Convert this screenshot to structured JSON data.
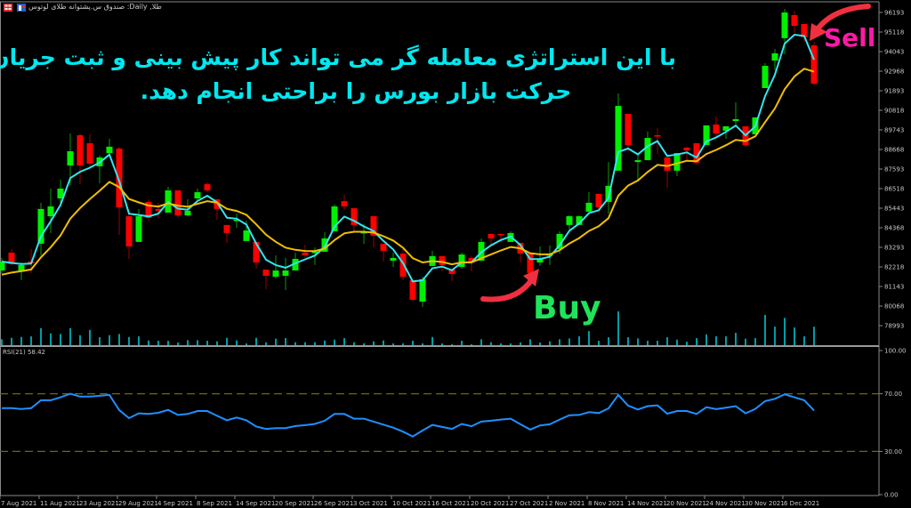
{
  "window": {
    "title": "طلا, Daily: صندوق س.پشتوانه طلای لوتوس",
    "icons": [
      "chart-grid-icon",
      "chart-window-icon"
    ]
  },
  "annotations": {
    "headline_line1": "با این استراتژی معامله گر می تواند کار پیش بینی و ثبت جریان",
    "headline_line2": "حرکت بازار بورس را براحتی انجام دهد.",
    "buy_label": "Buy",
    "sell_label": "Sell",
    "buy_candle_index": 55,
    "sell_candle_index": 82
  },
  "colors": {
    "background": "#000000",
    "bull": "#00f000",
    "bear": "#ff0000",
    "fast_ma": "#33e6f0",
    "slow_ma": "#f0c000",
    "volume": "#00d0e0",
    "rsi": "#1e90ff",
    "rsi_levels": "#7a6400",
    "headline": "#00e8f0",
    "buy": "#1fe35a",
    "sell": "#ff1aa5",
    "arrow": "#f03040"
  },
  "chart_data": [
    {
      "type": "candlestick",
      "symbol": "طلا",
      "timeframe": "Daily",
      "ylim": [
        78993,
        96193
      ],
      "y_ticks": [
        "96193",
        "95118",
        "94043",
        "92968",
        "91893",
        "90818",
        "89743",
        "88668",
        "87593",
        "86518",
        "85443",
        "84368",
        "83293",
        "82218",
        "81143",
        "80068",
        "78993"
      ],
      "x_tick_labels": [
        "7 Aug 2021",
        "11 Aug 2021",
        "23 Aug 2021",
        "29 Aug 2021",
        "4 Sep 2021",
        "8 Sep 2021",
        "14 Sep 2021",
        "20 Sep 2021",
        "26 Sep 2021",
        "3 Oct 2021",
        "10 Oct 2021",
        "16 Oct 2021",
        "20 Oct 2021",
        "27 Oct 2021",
        "2 Nov 2021",
        "8 Nov 2021",
        "14 Nov 2021",
        "20 Nov 2021",
        "24 Nov 2021",
        "30 Nov 2021",
        "6 Dec 2021"
      ],
      "x_tick_every": 4,
      "ohlc": [
        [
          82020,
          82710,
          81830,
          82510
        ],
        [
          83000,
          83200,
          82320,
          82370
        ],
        [
          82020,
          82460,
          81490,
          82320
        ],
        [
          82510,
          83200,
          81880,
          82420
        ],
        [
          83490,
          85740,
          82850,
          85400
        ],
        [
          85000,
          86520,
          84080,
          85540
        ],
        [
          85980,
          87010,
          85540,
          86520
        ],
        [
          87790,
          89550,
          86710,
          88570
        ],
        [
          89450,
          89550,
          86760,
          87790
        ],
        [
          89010,
          89500,
          87740,
          87890
        ],
        [
          87740,
          88330,
          86810,
          88230
        ],
        [
          88470,
          89260,
          88330,
          88820
        ],
        [
          88720,
          88820,
          83980,
          85490
        ],
        [
          85000,
          85100,
          82660,
          83340
        ],
        [
          83590,
          85400,
          83590,
          85000
        ],
        [
          85790,
          85930,
          84760,
          84910
        ],
        [
          85400,
          85740,
          84900,
          85300
        ],
        [
          85200,
          86620,
          85200,
          86420
        ],
        [
          86420,
          86420,
          84910,
          85050
        ],
        [
          85050,
          85930,
          85000,
          85300
        ],
        [
          85980,
          86520,
          85880,
          86320
        ],
        [
          86760,
          86860,
          86320,
          86420
        ],
        [
          85930,
          85930,
          84810,
          85400
        ],
        [
          84520,
          84520,
          83540,
          84080
        ],
        [
          84760,
          85150,
          84370,
          84810
        ],
        [
          83640,
          84760,
          83640,
          84220
        ],
        [
          83590,
          83590,
          82120,
          82460
        ],
        [
          82070,
          82070,
          81000,
          81730
        ],
        [
          81680,
          82850,
          81580,
          82020
        ],
        [
          81730,
          82710,
          80950,
          82020
        ],
        [
          82020,
          83000,
          82020,
          82660
        ],
        [
          83000,
          83440,
          82710,
          82850
        ],
        [
          83000,
          83290,
          82320,
          83050
        ],
        [
          83050,
          84130,
          83050,
          83780
        ],
        [
          84170,
          85640,
          84170,
          85540
        ],
        [
          85830,
          86180,
          85350,
          85540
        ],
        [
          85440,
          85440,
          84170,
          84520
        ],
        [
          84100,
          84570,
          83490,
          84130
        ],
        [
          85000,
          85000,
          83290,
          83930
        ],
        [
          83490,
          83490,
          82510,
          83100
        ],
        [
          82560,
          83000,
          82220,
          82710
        ],
        [
          82950,
          83200,
          81490,
          81680
        ],
        [
          81490,
          81490,
          80310,
          80410
        ],
        [
          80310,
          81680,
          80020,
          81540
        ],
        [
          82270,
          83100,
          82270,
          82810
        ],
        [
          82810,
          82810,
          81980,
          82320
        ],
        [
          82070,
          82070,
          81440,
          81830
        ],
        [
          82220,
          83000,
          82120,
          82900
        ],
        [
          82710,
          82810,
          81980,
          82460
        ],
        [
          82560,
          83780,
          82560,
          83590
        ],
        [
          84030,
          84030,
          83440,
          83780
        ],
        [
          84030,
          84030,
          83540,
          83980
        ],
        [
          83590,
          84170,
          83590,
          84080
        ],
        [
          83540,
          83540,
          82460,
          82950
        ],
        [
          82950,
          82950,
          81830,
          81880
        ],
        [
          82460,
          83340,
          82270,
          82660
        ],
        [
          82850,
          83390,
          82320,
          82900
        ],
        [
          83200,
          84170,
          82950,
          84030
        ],
        [
          84520,
          85050,
          84270,
          85000
        ],
        [
          84520,
          85050,
          84520,
          85000
        ],
        [
          85250,
          86320,
          85150,
          85740
        ],
        [
          86230,
          86230,
          85200,
          85490
        ],
        [
          85790,
          87980,
          85150,
          86670
        ],
        [
          87500,
          91750,
          87500,
          91060
        ],
        [
          90620,
          90620,
          88570,
          88910
        ],
        [
          87980,
          88470,
          86910,
          88080
        ],
        [
          88080,
          89650,
          88080,
          89300
        ],
        [
          89450,
          89840,
          88420,
          89400
        ],
        [
          88230,
          88230,
          86570,
          87500
        ],
        [
          87500,
          88470,
          87200,
          88470
        ],
        [
          88770,
          88820,
          87980,
          88620
        ],
        [
          89010,
          89010,
          87840,
          87940
        ],
        [
          88910,
          89990,
          88910,
          89990
        ],
        [
          90040,
          90480,
          89260,
          89550
        ],
        [
          89700,
          89940,
          89260,
          89940
        ],
        [
          90230,
          91260,
          90040,
          90330
        ],
        [
          89940,
          89940,
          88820,
          88910
        ],
        [
          89500,
          90430,
          89500,
          90430
        ],
        [
          92040,
          93410,
          92040,
          93260
        ],
        [
          93550,
          94190,
          93020,
          93950
        ],
        [
          94780,
          96390,
          93900,
          96190
        ],
        [
          96050,
          96290,
          95070,
          95460
        ],
        [
          95560,
          95560,
          94580,
          94830
        ],
        [
          94390,
          94580,
          92190,
          92280
        ]
      ],
      "volume_relative": [
        20,
        25,
        28,
        30,
        58,
        40,
        38,
        58,
        34,
        52,
        27,
        34,
        38,
        28,
        30,
        16,
        15,
        15,
        9,
        17,
        17,
        15,
        13,
        25,
        16,
        6,
        25,
        10,
        22,
        24,
        10,
        10,
        10,
        16,
        19,
        24,
        10,
        6,
        13,
        16,
        6,
        6,
        15,
        6,
        28,
        6,
        3,
        15,
        3,
        20,
        10,
        6,
        6,
        9,
        20,
        9,
        13,
        20,
        23,
        30,
        48,
        15,
        27,
        115,
        27,
        23,
        15,
        15,
        27,
        19,
        12,
        24,
        37,
        30,
        30,
        42,
        22,
        24,
        103,
        63,
        93,
        60,
        30,
        63
      ],
      "series": [
        {
          "indicator": "moving-average-fast",
          "color_key": "fast_ma"
        },
        {
          "indicator": "moving-average-slow",
          "color_key": "slow_ma"
        }
      ]
    },
    {
      "type": "line",
      "indicator_label": "RSI(21) 58.42",
      "ylim": [
        0,
        100
      ],
      "y_ticks": [
        "100.00",
        "70.00",
        "30.00",
        "0.00"
      ],
      "levels": [
        70,
        30
      ],
      "values": [
        60,
        60,
        59.4,
        60,
        65.5,
        65.5,
        67.5,
        70,
        68,
        68,
        68.6,
        69.2,
        58.7,
        53.1,
        56.4,
        56,
        56.8,
        58.8,
        55.3,
        56,
        58,
        58,
        54.7,
        51.6,
        53.5,
        51.6,
        47.2,
        45.6,
        46.2,
        46.2,
        47.6,
        48.2,
        49.1,
        51.3,
        56,
        56,
        52.7,
        52.7,
        50.7,
        48.6,
        46.5,
        43.7,
        40.4,
        44.5,
        48.4,
        47,
        45.6,
        49.1,
        47.5,
        50.7,
        51.3,
        52.1,
        52.7,
        48.8,
        45.1,
        48,
        48.8,
        52.1,
        55.1,
        55.3,
        57.2,
        56.6,
        59.9,
        69.2,
        61.8,
        59.1,
        61.4,
        62,
        56.2,
        58,
        58,
        56,
        60.7,
        59.3,
        60.3,
        61.4,
        56.4,
        59.5,
        64.9,
        66.5,
        69.6,
        67.5,
        65.5,
        58.42
      ]
    }
  ]
}
